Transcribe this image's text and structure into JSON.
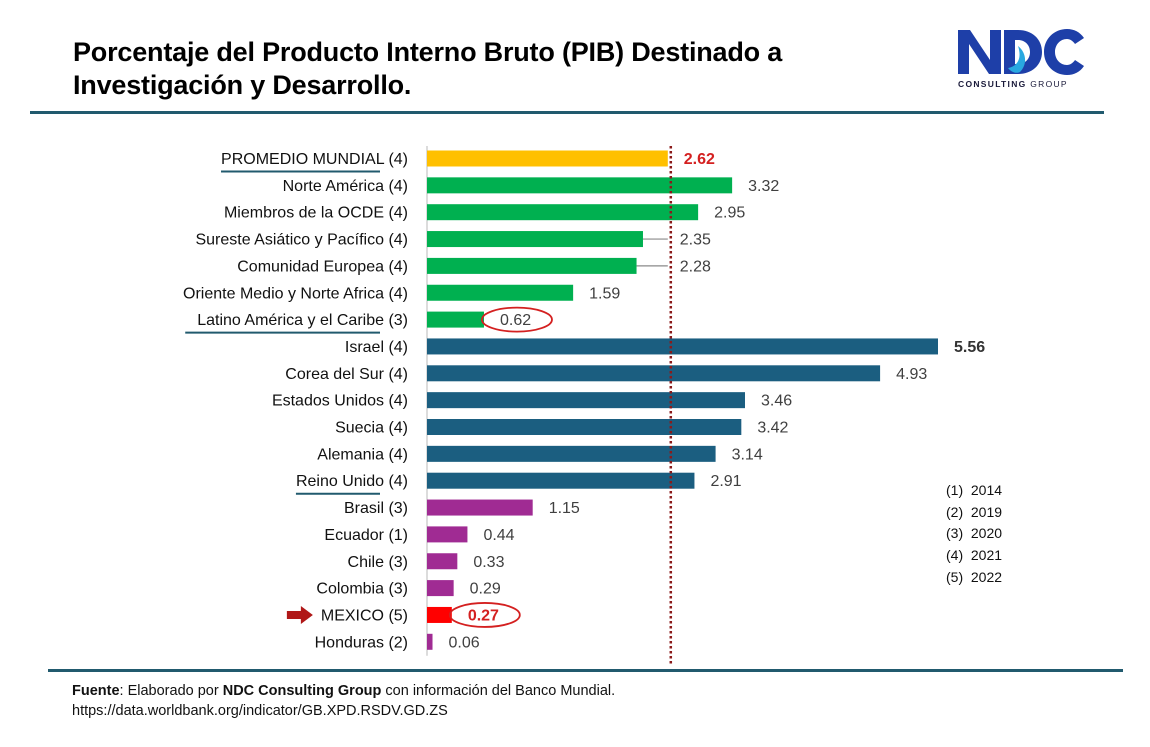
{
  "header": {
    "title_line1": "Porcentaje del Producto Interno Bruto  (PIB) Destinado a",
    "title_line2": "Investigación y Desarrollo.",
    "logo_text": "NDC",
    "logo_subtitle_bold": "CONSULTING",
    "logo_subtitle_rest": " GROUP"
  },
  "colors": {
    "world_average": "#ffc000",
    "region": "#00b050",
    "country_developed": "#1b5e80",
    "country_latam": "#a02b93",
    "mexico": "#ff0000",
    "reference_line": "#8b1a1a",
    "highlight": "#d42020",
    "rule": "#215a6e"
  },
  "chart_data": {
    "type": "bar",
    "orientation": "horizontal",
    "title": "Porcentaje del Producto Interno Bruto (PIB) Destinado a Investigación y Desarrollo.",
    "xlabel": "",
    "ylabel": "",
    "xlim": [
      0,
      5.56
    ],
    "grid": false,
    "reference_line": {
      "value": 2.62,
      "label": "PROMEDIO MUNDIAL",
      "style": "dotted"
    },
    "categories": [
      "PROMEDIO MUNDIAL (4)",
      "Norte América (4)",
      "Miembros de la OCDE (4)",
      "Sureste Asiático y Pacífico (4)",
      "Comunidad Europea (4)",
      "Oriente Medio y Norte Africa (4)",
      "Latino América y el Caribe (3)",
      "Israel (4)",
      "Corea del Sur (4)",
      "Estados Unidos (4)",
      "Suecia (4)",
      "Alemania (4)",
      "Reino Unido (4)",
      "Brasil (3)",
      "Ecuador (1)",
      "Chile (3)",
      "Colombia (3)",
      "MEXICO (5)",
      "Honduras (2)"
    ],
    "values": [
      2.62,
      3.32,
      2.95,
      2.35,
      2.28,
      1.59,
      0.62,
      5.56,
      4.93,
      3.46,
      3.42,
      3.14,
      2.91,
      1.15,
      0.44,
      0.33,
      0.29,
      0.27,
      0.06
    ],
    "value_labels": [
      "2.62",
      "3.32",
      "2.95",
      "2.35",
      "2.28",
      "1.59",
      "0.62",
      "5.56",
      "4.93",
      "3.46",
      "3.42",
      "3.14",
      "2.91",
      "1.15",
      "0.44",
      "0.33",
      "0.29",
      "0.27",
      "0.06"
    ],
    "groups": [
      "world_average",
      "region",
      "region",
      "region",
      "region",
      "region",
      "region",
      "country_developed",
      "country_developed",
      "country_developed",
      "country_developed",
      "country_developed",
      "country_developed",
      "country_latam",
      "country_latam",
      "country_latam",
      "country_latam",
      "mexico",
      "country_latam"
    ],
    "emphasis": {
      "bold_red_value": [
        0,
        17
      ],
      "bold_value": [
        7
      ],
      "circled_value": [
        6,
        17
      ],
      "underlined_label": [
        0,
        6,
        12
      ],
      "arrow_marker": [
        17
      ],
      "leader_line": [
        3,
        4
      ]
    },
    "legend": [
      "(1)  2014",
      "(2)  2019",
      "(3)  2020",
      "(4)  2021",
      "(5)  2022"
    ]
  },
  "footer": {
    "source_label": "Fuente",
    "source_text_1": ": Elaborado por ",
    "source_org": "NDC Consulting Group",
    "source_text_2": " con información del Banco Mundial.",
    "source_url": "https://data.worldbank.org/indicator/GB.XPD.RSDV.GD.ZS"
  }
}
